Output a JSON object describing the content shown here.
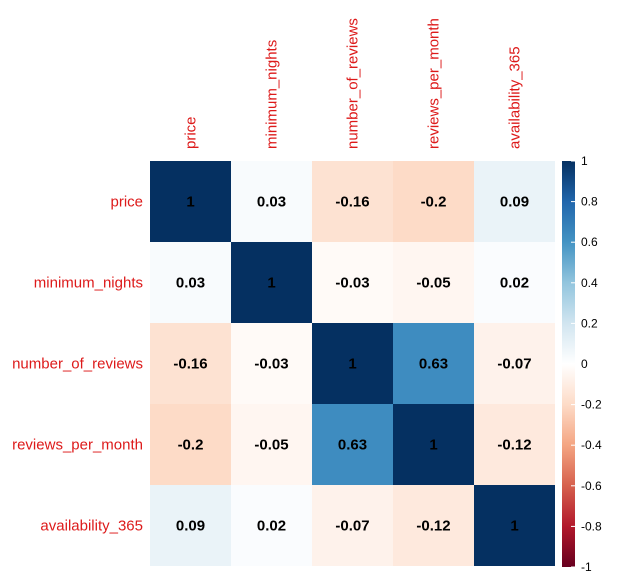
{
  "chart_data": {
    "type": "heatmap",
    "variables": [
      "price",
      "minimum_nights",
      "number_of_reviews",
      "reviews_per_month",
      "availability_365"
    ],
    "matrix": [
      [
        1,
        0.03,
        -0.16,
        -0.2,
        0.09
      ],
      [
        0.03,
        1,
        -0.03,
        -0.05,
        0.02
      ],
      [
        -0.16,
        -0.03,
        1,
        0.63,
        -0.07
      ],
      [
        -0.2,
        -0.05,
        0.63,
        1,
        -0.12
      ],
      [
        0.09,
        0.02,
        -0.07,
        -0.12,
        1
      ]
    ],
    "labels": [
      [
        "1",
        "0.03",
        "-0.16",
        "-0.2",
        "0.09"
      ],
      [
        "0.03",
        "1",
        "-0.03",
        "-0.05",
        "0.02"
      ],
      [
        "-0.16",
        "-0.03",
        "1",
        "0.63",
        "-0.07"
      ],
      [
        "-0.2",
        "-0.05",
        "0.63",
        "1",
        "-0.12"
      ],
      [
        "0.09",
        "0.02",
        "-0.07",
        "-0.12",
        "1"
      ]
    ],
    "colorbar": {
      "range": [
        -1,
        1
      ],
      "ticks": [
        1,
        0.8,
        0.6,
        0.4,
        0.2,
        0,
        -0.2,
        -0.4,
        -0.6,
        -0.8,
        -1
      ],
      "tick_labels": [
        "1",
        "0.8",
        "0.6",
        "0.4",
        "0.2",
        "0",
        "-0.2",
        "-0.4",
        "-0.6",
        "-0.8",
        "-1"
      ]
    },
    "colors": {
      "label_color": "#dd1a1a",
      "colormap": [
        "#67001f",
        "#b2182b",
        "#d6604d",
        "#f4a582",
        "#fddbc7",
        "#ffffff",
        "#d1e5f0",
        "#92c5de",
        "#4393c3",
        "#2166ac",
        "#053061"
      ]
    }
  }
}
